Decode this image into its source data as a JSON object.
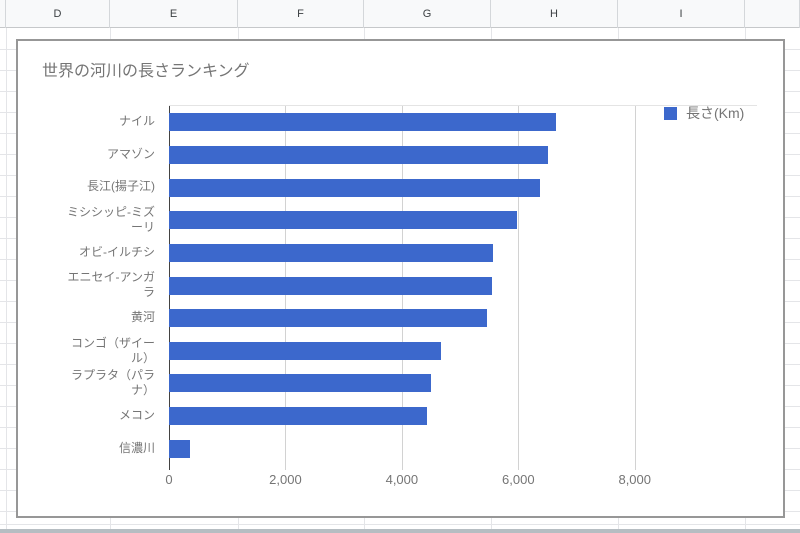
{
  "sheet": {
    "column_headers": [
      "",
      "D",
      "E",
      "F",
      "G",
      "H",
      "I",
      ""
    ],
    "header_bg": "#f8f9fa",
    "header_text_color": "#3c4043",
    "grid_color": "#e4e5e8"
  },
  "chart": {
    "title": "世界の河川の長さランキング",
    "title_color": "#757575",
    "legend": {
      "label": "長さ(Km)",
      "position": "top-right"
    },
    "axis_text_color": "#757575",
    "bar_color": "#3c68cc"
  },
  "chart_data": {
    "type": "bar",
    "orientation": "horizontal",
    "title": "世界の河川の長さランキング",
    "series": [
      {
        "name": "長さ(Km)",
        "values": [
          6650,
          6516,
          6380,
          5969,
          5568,
          5550,
          5464,
          4667,
          4500,
          4425,
          367
        ]
      }
    ],
    "categories": [
      "ナイル",
      "アマゾン",
      "長江(揚子江)",
      "ミシシッピ-ミズーリ",
      "オビ-イルチシ",
      "エニセイ-アンガラ",
      "黄河",
      "コンゴ（ザイール）",
      "ラプラタ（パラナ）",
      "メコン",
      "信濃川"
    ],
    "category_display": [
      "ナイル",
      "アマゾン",
      "長江(揚子江)",
      "ミシシッピ-ミズ\nーリ",
      "オビ-イルチシ",
      "エニセイ-アンガ\nラ",
      "黄河",
      "コンゴ（ザイー\nル）",
      "ラプラタ（パラ\nナ）",
      "メコン",
      "信濃川"
    ],
    "xlabel": "",
    "ylabel": "",
    "xticks_labels": [
      "0",
      "2,000",
      "4,000",
      "6,000",
      "8,000"
    ],
    "xticks_values": [
      0,
      2000,
      4000,
      6000,
      8000
    ],
    "xlim": [
      0,
      10100
    ],
    "grid": true,
    "legend_position": "top-right",
    "bar_color": "#3c68cc",
    "gridline_color": "#d2d2d2",
    "axis_line_color": "#424242"
  }
}
